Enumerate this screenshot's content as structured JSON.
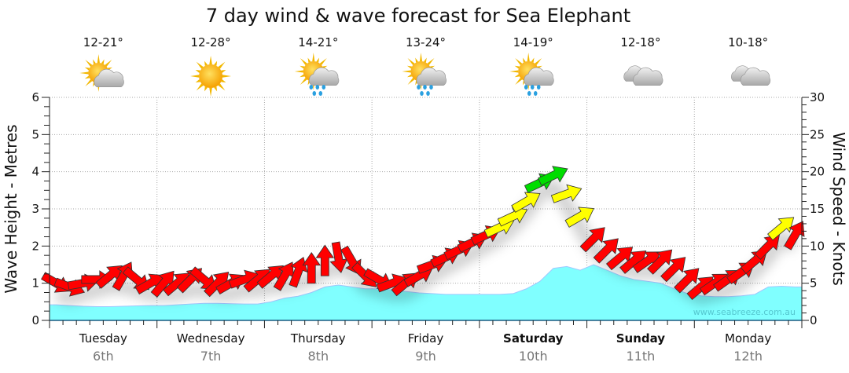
{
  "chart_data": {
    "type": "area",
    "title": "7 day wind & wave forecast for Sea Elephant",
    "ylabel": "Wave Height - Metres",
    "y2label": "Wind Speed - Knots",
    "ylim": [
      0,
      6
    ],
    "y2lim": [
      0,
      30
    ],
    "yticks": [
      "0",
      "1",
      "2",
      "3",
      "4",
      "5",
      "6"
    ],
    "y2ticks": [
      "0",
      "5",
      "10",
      "15",
      "20",
      "25",
      "30"
    ],
    "grid": true,
    "watermark": "www.seabreeze.com.au",
    "days": [
      {
        "name": "Tuesday",
        "date": "6th",
        "temp": "12-21°",
        "icon": "partly-cloudy",
        "bold": false
      },
      {
        "name": "Wednesday",
        "date": "7th",
        "temp": "12-28°",
        "icon": "sunny",
        "bold": false
      },
      {
        "name": "Thursday",
        "date": "8th",
        "temp": "14-21°",
        "icon": "partly-cloudy-rain",
        "bold": false
      },
      {
        "name": "Friday",
        "date": "9th",
        "temp": "13-24°",
        "icon": "partly-cloudy-rain",
        "bold": false
      },
      {
        "name": "Saturday",
        "date": "10th",
        "temp": "14-19°",
        "icon": "partly-cloudy-rain",
        "bold": true
      },
      {
        "name": "Sunday",
        "date": "11th",
        "temp": "12-18°",
        "icon": "cloudy",
        "bold": true
      },
      {
        "name": "Monday",
        "date": "12th",
        "temp": "10-18°",
        "icon": "cloudy",
        "bold": false
      }
    ],
    "interval_hours": 3,
    "wave_height_m": [
      0.42,
      0.4,
      0.38,
      0.37,
      0.37,
      0.38,
      0.39,
      0.4,
      0.4,
      0.42,
      0.44,
      0.46,
      0.46,
      0.45,
      0.44,
      0.44,
      0.5,
      0.6,
      0.65,
      0.75,
      0.9,
      0.95,
      0.9,
      0.85,
      0.85,
      0.82,
      0.78,
      0.74,
      0.72,
      0.7,
      0.7,
      0.7,
      0.7,
      0.7,
      0.72,
      0.85,
      1.05,
      1.4,
      1.45,
      1.35,
      1.5,
      1.35,
      1.2,
      1.1,
      1.05,
      1.0,
      0.85,
      0.72,
      0.66,
      0.64,
      0.64,
      0.66,
      0.7,
      0.9,
      0.92,
      0.9
    ],
    "wind_speed_kn": [
      5,
      4.5,
      5,
      5.5,
      6,
      6,
      5.5,
      5,
      5,
      5,
      5.5,
      5.5,
      5,
      5,
      5.5,
      5.5,
      6,
      6,
      6.5,
      7,
      8,
      8.5,
      8,
      6,
      5.5,
      5,
      5,
      6,
      7.5,
      8.5,
      9.5,
      10.5,
      11.5,
      12.5,
      14,
      16,
      18.5,
      19.5,
      17,
      14,
      11,
      9.5,
      8.5,
      8,
      8,
      8,
      7,
      5.5,
      4.5,
      5,
      5.5,
      6.5,
      8,
      10,
      12.5,
      11.5
    ],
    "wind_dir_to_deg": [
      30,
      20,
      -10,
      0,
      -40,
      -60,
      40,
      -30,
      -50,
      -40,
      -45,
      40,
      -45,
      -30,
      -20,
      -40,
      -40,
      -60,
      -70,
      -90,
      -90,
      80,
      60,
      45,
      30,
      -20,
      -40,
      -30,
      -20,
      -25,
      -25,
      -25,
      -25,
      -25,
      -25,
      -30,
      -25,
      -25,
      -20,
      -30,
      -45,
      -45,
      -40,
      -40,
      -35,
      -45,
      -45,
      -45,
      -40,
      -35,
      -35,
      -35,
      -40,
      -45,
      -40,
      -60
    ],
    "wind_colors": {
      "light": "#ff0000",
      "moderate": "#ffff00",
      "strong": "#00dd00"
    },
    "wave_color": "#80ffff"
  }
}
